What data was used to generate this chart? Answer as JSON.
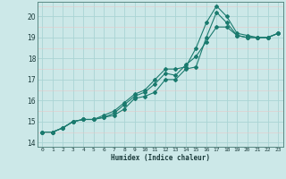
{
  "xlabel": "Humidex (Indice chaleur)",
  "bg_color": "#cce8e8",
  "grid_color_major": "#aad4d4",
  "grid_color_minor": "#f0c0c0",
  "line_color": "#1a7a6e",
  "xlim": [
    -0.5,
    23.5
  ],
  "ylim": [
    13.8,
    20.7
  ],
  "yticks": [
    14,
    15,
    16,
    17,
    18,
    19,
    20
  ],
  "xticks": [
    0,
    1,
    2,
    3,
    4,
    5,
    6,
    7,
    8,
    9,
    10,
    11,
    12,
    13,
    14,
    15,
    16,
    17,
    18,
    19,
    20,
    21,
    22,
    23
  ],
  "series": [
    [
      14.5,
      14.5,
      14.7,
      15.0,
      15.1,
      15.1,
      15.2,
      15.3,
      15.6,
      16.1,
      16.2,
      16.4,
      17.0,
      17.0,
      17.5,
      17.6,
      19.0,
      20.2,
      19.7,
      19.1,
      19.0,
      19.0,
      19.0,
      19.2
    ],
    [
      14.5,
      14.5,
      14.7,
      15.0,
      15.1,
      15.1,
      15.3,
      15.5,
      15.9,
      16.3,
      16.5,
      17.0,
      17.5,
      17.5,
      17.6,
      18.5,
      19.7,
      20.5,
      20.0,
      19.2,
      19.1,
      19.0,
      19.0,
      19.2
    ],
    [
      14.5,
      14.5,
      14.7,
      15.0,
      15.1,
      15.1,
      15.2,
      15.4,
      15.8,
      16.2,
      16.4,
      16.8,
      17.3,
      17.2,
      17.7,
      18.1,
      18.8,
      19.5,
      19.5,
      19.1,
      19.0,
      19.0,
      19.0,
      19.2
    ]
  ]
}
